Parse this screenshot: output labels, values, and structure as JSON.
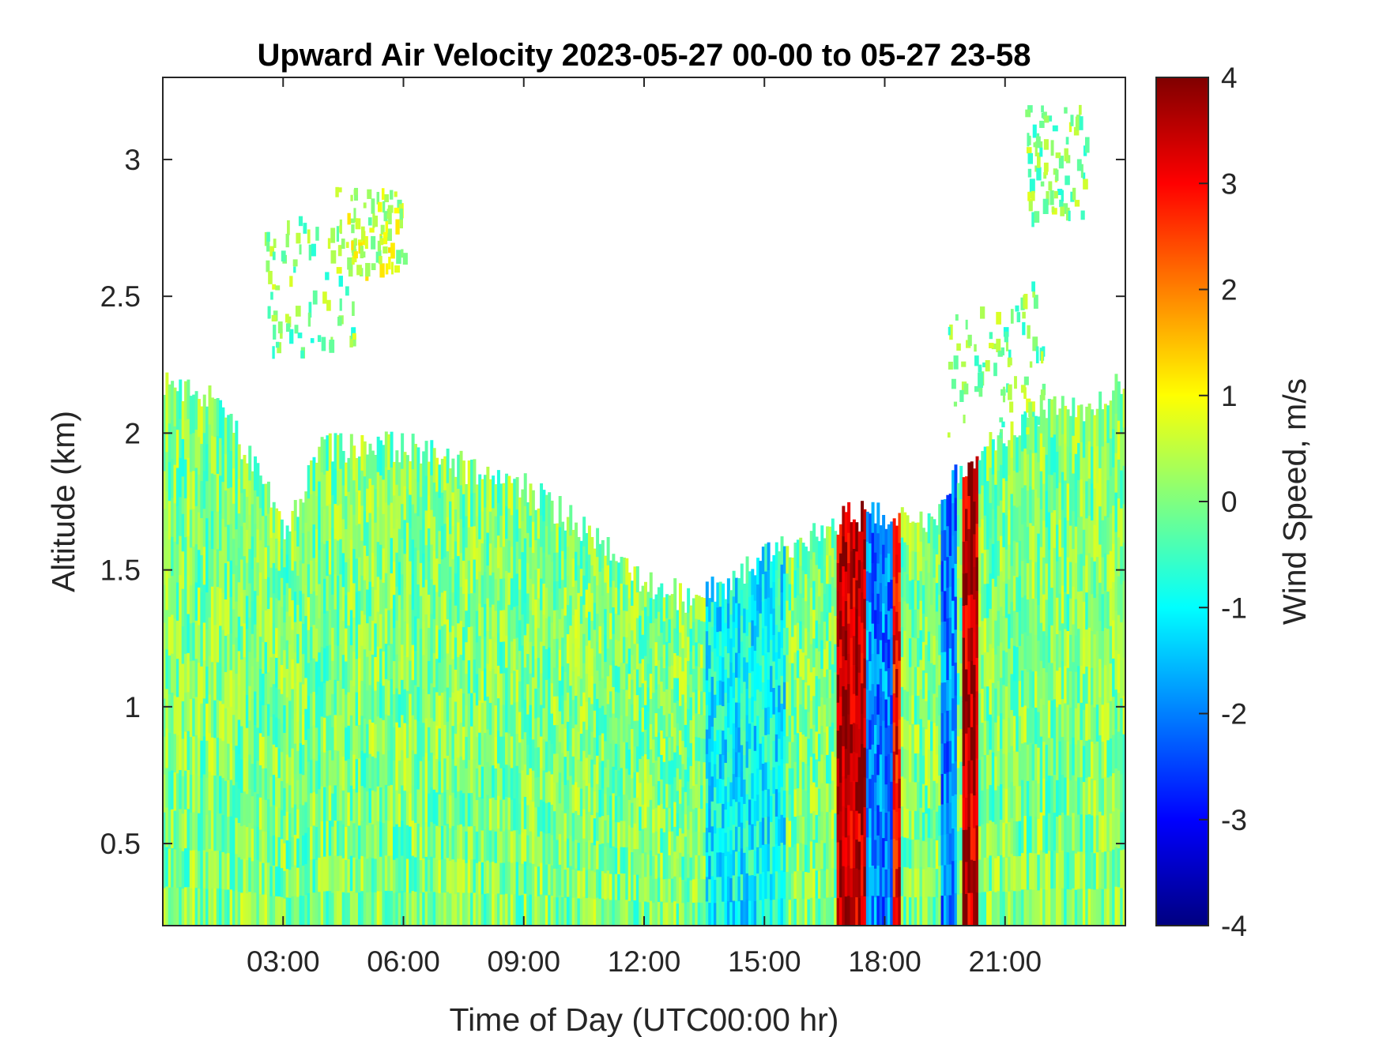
{
  "chart_data": {
    "type": "heatmap",
    "title": "Upward Air Velocity 2023-05-27 00-00 to 05-27 23-58",
    "xlabel": "Time of Day (UTC00:00 hr)",
    "ylabel": "Altitude (km)",
    "colorbar_label": "Wind Speed, m/s",
    "colormap": "jet",
    "xlim_hours": [
      0,
      24
    ],
    "ylim_km": [
      0.2,
      3.3
    ],
    "clim": [
      -4,
      4
    ],
    "x_ticks": [
      {
        "value": 3,
        "label": "03:00"
      },
      {
        "value": 6,
        "label": "06:00"
      },
      {
        "value": 9,
        "label": "09:00"
      },
      {
        "value": 12,
        "label": "12:00"
      },
      {
        "value": 15,
        "label": "15:00"
      },
      {
        "value": 18,
        "label": "18:00"
      },
      {
        "value": 21,
        "label": "21:00"
      }
    ],
    "y_ticks": [
      {
        "value": 0.5,
        "label": "0.5"
      },
      {
        "value": 1,
        "label": "1"
      },
      {
        "value": 1.5,
        "label": "1.5"
      },
      {
        "value": 2,
        "label": "2"
      },
      {
        "value": 2.5,
        "label": "2.5"
      },
      {
        "value": 3,
        "label": "3"
      }
    ],
    "colorbar_ticks": [
      {
        "value": 4,
        "label": "4"
      },
      {
        "value": 3,
        "label": "3"
      },
      {
        "value": 2,
        "label": "2"
      },
      {
        "value": 1,
        "label": "1"
      },
      {
        "value": 0,
        "label": "0"
      },
      {
        "value": -1,
        "label": "-1"
      },
      {
        "value": -2,
        "label": "-2"
      },
      {
        "value": -3,
        "label": "-3"
      },
      {
        "value": -4,
        "label": "-4"
      }
    ],
    "data_top_altitude_km": [
      {
        "hour": 0,
        "alt": 2.2
      },
      {
        "hour": 1,
        "alt": 2.15
      },
      {
        "hour": 2,
        "alt": 1.95
      },
      {
        "hour": 3,
        "alt": 1.65
      },
      {
        "hour": 4,
        "alt": 1.95
      },
      {
        "hour": 6,
        "alt": 1.95
      },
      {
        "hour": 8,
        "alt": 1.85
      },
      {
        "hour": 9,
        "alt": 1.8
      },
      {
        "hour": 10,
        "alt": 1.7
      },
      {
        "hour": 11,
        "alt": 1.6
      },
      {
        "hour": 12,
        "alt": 1.45
      },
      {
        "hour": 13,
        "alt": 1.4
      },
      {
        "hour": 14,
        "alt": 1.45
      },
      {
        "hour": 15,
        "alt": 1.55
      },
      {
        "hour": 16,
        "alt": 1.6
      },
      {
        "hour": 17,
        "alt": 1.7
      },
      {
        "hour": 18,
        "alt": 1.7
      },
      {
        "hour": 19,
        "alt": 1.65
      },
      {
        "hour": 20,
        "alt": 1.9
      },
      {
        "hour": 21,
        "alt": 2.0
      },
      {
        "hour": 22,
        "alt": 2.1
      },
      {
        "hour": 23,
        "alt": 2.1
      },
      {
        "hour": 24,
        "alt": 2.2
      }
    ],
    "wind_bands_m_s": [
      {
        "from_hour": 0,
        "to_hour": 13.5,
        "value": 0
      },
      {
        "from_hour": 13.5,
        "to_hour": 15.5,
        "value": -1
      },
      {
        "from_hour": 16.8,
        "to_hour": 17.5,
        "value": 3.5
      },
      {
        "from_hour": 17.5,
        "to_hour": 18.2,
        "value": -2
      },
      {
        "from_hour": 18.2,
        "to_hour": 18.4,
        "value": 3
      },
      {
        "from_hour": 19.4,
        "to_hour": 19.8,
        "value": -2
      },
      {
        "from_hour": 19.9,
        "to_hour": 20.3,
        "value": 3.5
      },
      {
        "from_hour": 20.5,
        "to_hour": 24,
        "value": 0
      }
    ],
    "aloft_patches": [
      {
        "from_hour": 2.5,
        "to_hour": 4.8,
        "from_alt": 2.3,
        "to_alt": 2.8,
        "value": 0
      },
      {
        "from_hour": 4.3,
        "to_hour": 6.0,
        "from_alt": 2.6,
        "to_alt": 2.9,
        "value": 0.5
      },
      {
        "from_hour": 19.5,
        "to_hour": 22.0,
        "from_alt": 2.0,
        "to_alt": 2.6,
        "value": 0
      },
      {
        "from_hour": 21.5,
        "to_hour": 23.0,
        "from_alt": 2.8,
        "to_alt": 3.2,
        "value": 0
      }
    ]
  }
}
